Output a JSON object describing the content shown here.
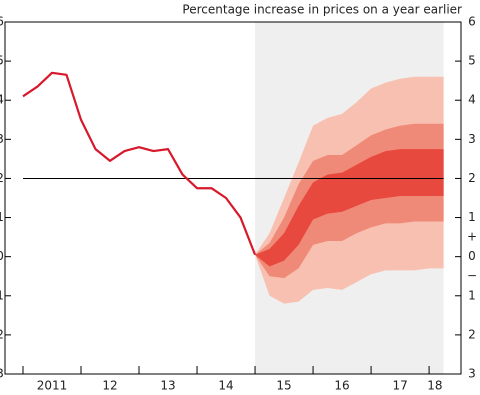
{
  "chart_data": {
    "type": "fan",
    "title": "Percentage increase in prices on a year earlier",
    "xlim": [
      2010.69,
      2018.55
    ],
    "ylim": [
      -3,
      6
    ],
    "xticks": [
      {
        "value": 2011.5,
        "label": "2011"
      },
      {
        "value": 2012.5,
        "label": "12"
      },
      {
        "value": 2013.5,
        "label": "13"
      },
      {
        "value": 2014.5,
        "label": "14"
      },
      {
        "value": 2015.5,
        "label": "15"
      },
      {
        "value": 2016.5,
        "label": "16"
      },
      {
        "value": 2017.5,
        "label": "17"
      },
      {
        "value": 2018.1,
        "label": "18"
      }
    ],
    "xtick_marks": [
      2011,
      2012,
      2013,
      2014,
      2015,
      2016,
      2017,
      2018
    ],
    "yticks": [
      6,
      5,
      4,
      3,
      2,
      1,
      0,
      {
        "value": -1,
        "label": "1"
      },
      {
        "value": -2,
        "label": "2"
      },
      {
        "value": -3,
        "label": "3"
      }
    ],
    "sign_labels": [
      {
        "value": 0.5,
        "label": "+"
      },
      {
        "value": -0.5,
        "label": "−"
      }
    ],
    "projection": [
      2015.0,
      2018.25
    ],
    "projection_color": "#efefef",
    "target": 2,
    "line": {
      "color": "#d7192b",
      "x": [
        2011.0,
        2011.25,
        2011.5,
        2011.75,
        2012.0,
        2012.25,
        2012.5,
        2012.75,
        2013.0,
        2013.25,
        2013.5,
        2013.75,
        2014.0,
        2014.25,
        2014.5,
        2014.75,
        2015.0
      ],
      "values": [
        4.1,
        4.35,
        4.7,
        4.65,
        3.5,
        2.75,
        2.45,
        2.7,
        2.8,
        2.7,
        2.75,
        2.1,
        1.75,
        1.75,
        1.5,
        1.0,
        0.05
      ]
    },
    "fan_x": [
      2015.0,
      2015.25,
      2015.5,
      2015.75,
      2016.0,
      2016.25,
      2016.5,
      2016.75,
      2017.0,
      2017.25,
      2017.5,
      2017.75,
      2018.0,
      2018.25
    ],
    "bands": [
      {
        "color": "#f8c0b0",
        "upper": [
          0.05,
          0.6,
          1.5,
          2.4,
          3.35,
          3.55,
          3.65,
          3.95,
          4.3,
          4.45,
          4.55,
          4.6,
          4.6,
          4.6
        ],
        "lower": [
          0.05,
          -1.0,
          -1.2,
          -1.15,
          -0.85,
          -0.8,
          -0.85,
          -0.65,
          -0.45,
          -0.35,
          -0.35,
          -0.35,
          -0.3,
          -0.3
        ]
      },
      {
        "color": "#f08a78",
        "upper": [
          0.05,
          0.35,
          1.0,
          1.85,
          2.45,
          2.6,
          2.6,
          2.85,
          3.1,
          3.25,
          3.35,
          3.4,
          3.4,
          3.4
        ],
        "lower": [
          0.05,
          -0.5,
          -0.55,
          -0.3,
          0.3,
          0.4,
          0.4,
          0.6,
          0.75,
          0.85,
          0.85,
          0.9,
          0.9,
          0.9
        ]
      },
      {
        "color": "#e8493e",
        "upper": [
          0.05,
          0.2,
          0.6,
          1.3,
          1.9,
          2.1,
          2.15,
          2.35,
          2.55,
          2.7,
          2.75,
          2.75,
          2.75,
          2.75
        ],
        "lower": [
          0.05,
          -0.25,
          -0.1,
          0.3,
          0.95,
          1.1,
          1.15,
          1.3,
          1.45,
          1.5,
          1.55,
          1.55,
          1.55,
          1.55
        ]
      }
    ]
  }
}
